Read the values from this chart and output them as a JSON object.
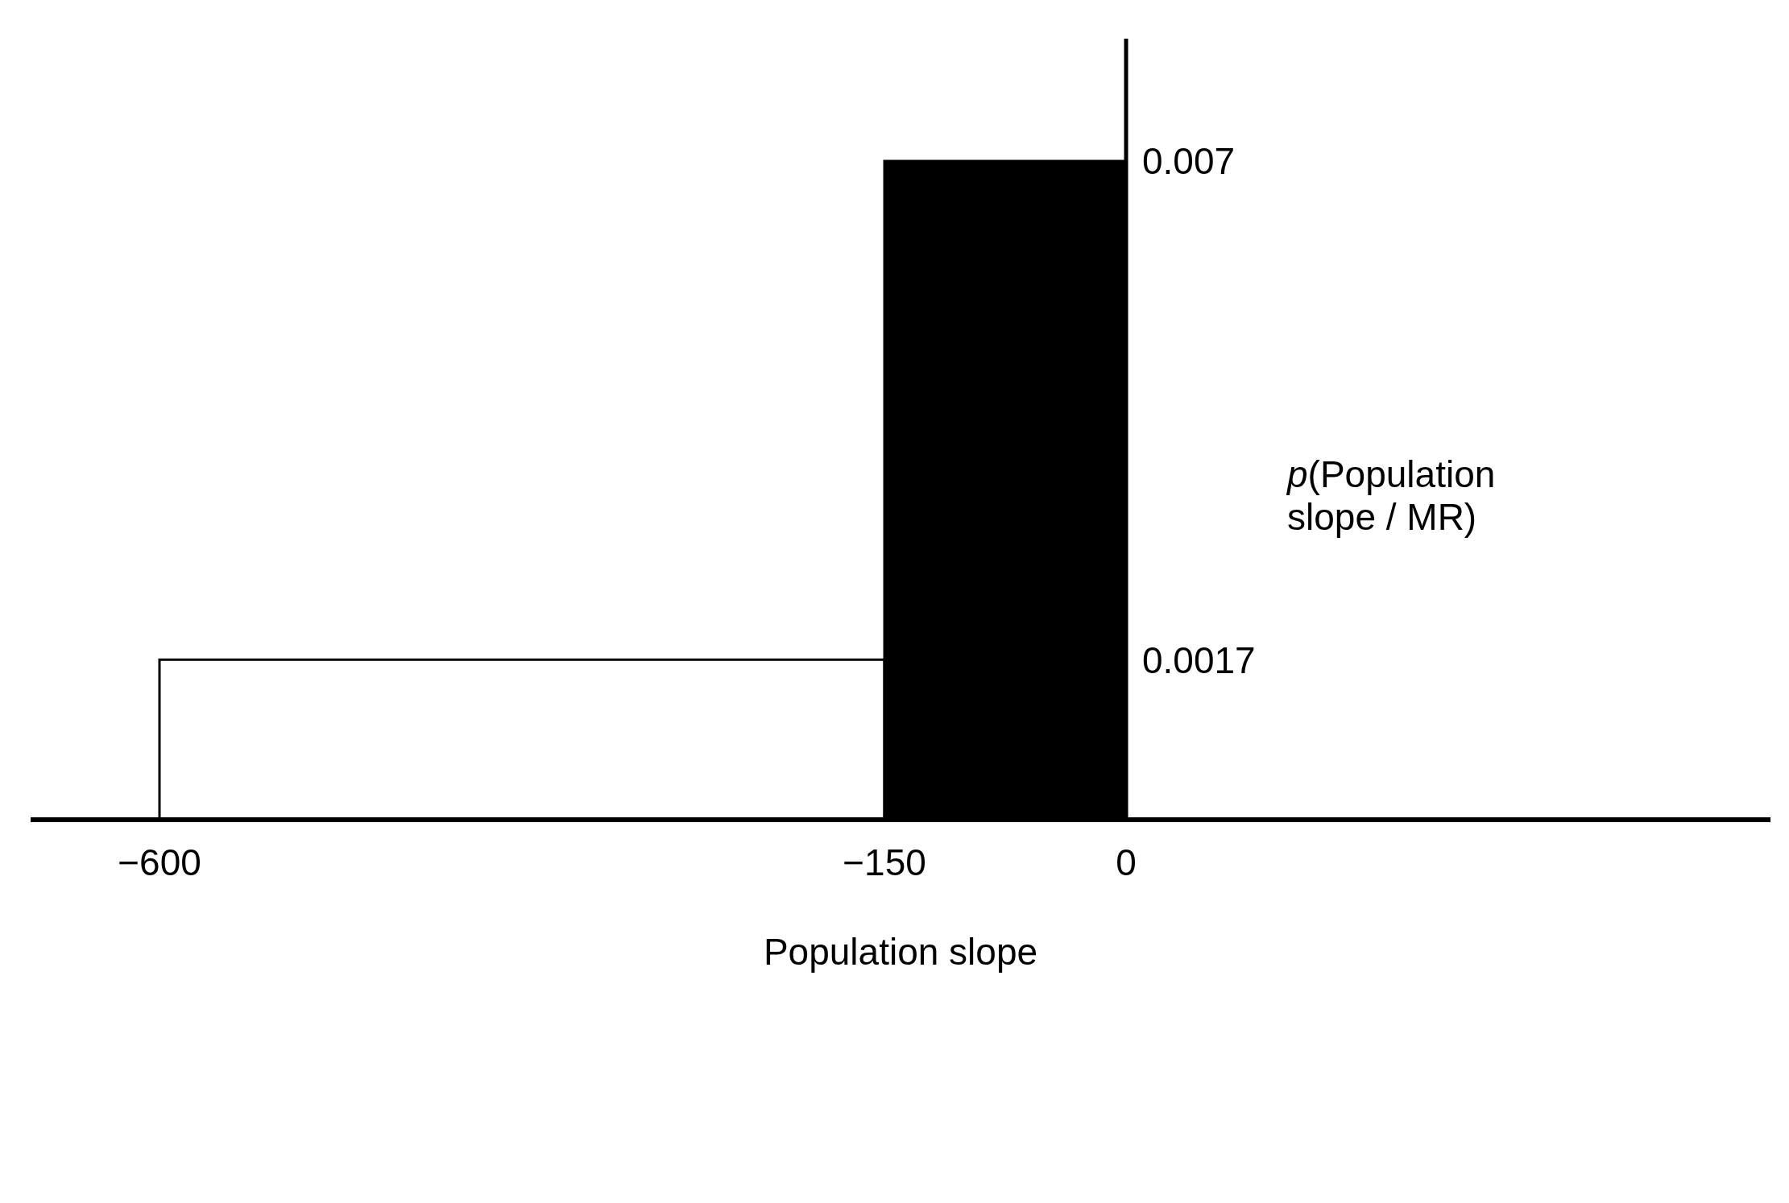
{
  "chart_data": {
    "type": "histogram",
    "xlabel": "Population slope",
    "ylabel": "p(Population slope / MR)",
    "bins": [
      -600,
      -150,
      0
    ],
    "values": [
      0.0017,
      0.007
    ],
    "colors": [
      "#ffffff",
      "#000000"
    ],
    "xlim": [
      -680,
      400
    ],
    "xticks": [
      {
        "value": -600,
        "label": "−600"
      },
      {
        "value": -150,
        "label": "−150"
      },
      0
    ],
    "ylim": [
      0,
      0.0083
    ],
    "yticks": [
      0.0017,
      0.007
    ]
  }
}
